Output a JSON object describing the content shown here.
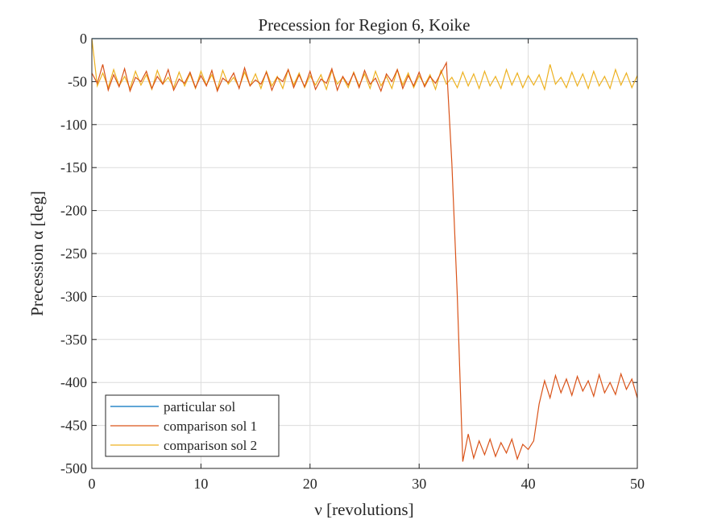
{
  "chart_data": {
    "type": "line",
    "title": "Precession for Region 6, Koike",
    "x_label": "ν [revolutions]",
    "y_label": "Precession α [deg]",
    "x": [
      0,
      0.5,
      1,
      1.5,
      2,
      2.5,
      3,
      3.5,
      4,
      4.5,
      5,
      5.5,
      6,
      6.5,
      7,
      7.5,
      8,
      8.5,
      9,
      9.5,
      10,
      10.5,
      11,
      11.5,
      12,
      12.5,
      13,
      13.5,
      14,
      14.5,
      15,
      15.5,
      16,
      16.5,
      17,
      17.5,
      18,
      18.5,
      19,
      19.5,
      20,
      20.5,
      21,
      21.5,
      22,
      22.5,
      23,
      23.5,
      24,
      24.5,
      25,
      25.5,
      26,
      26.5,
      27,
      27.5,
      28,
      28.5,
      29,
      29.5,
      30,
      30.5,
      31,
      31.5,
      32,
      32.5,
      33,
      33.5,
      34,
      34.5,
      35,
      35.5,
      36,
      36.5,
      37,
      37.5,
      38,
      38.5,
      39,
      39.5,
      40,
      40.5,
      41,
      41.5,
      42,
      42.5,
      43,
      43.5,
      44,
      44.5,
      45,
      45.5,
      46,
      46.5,
      47,
      47.5,
      48,
      48.5,
      49,
      49.5,
      50
    ],
    "series": [
      {
        "name": "particular sol",
        "color": "#0072BD",
        "values": [
          0,
          0,
          0,
          0,
          0,
          0,
          0,
          0,
          0,
          0,
          0,
          0,
          0,
          0,
          0,
          0,
          0,
          0,
          0,
          0,
          0,
          0,
          0,
          0,
          0,
          0,
          0,
          0,
          0,
          0,
          0,
          0,
          0,
          0,
          0,
          0,
          0,
          0,
          0,
          0,
          0,
          0,
          0,
          0,
          0,
          0,
          0,
          0,
          0,
          0,
          0,
          0,
          0,
          0,
          0,
          0,
          0,
          0,
          0,
          0,
          0,
          0,
          0,
          0,
          0,
          0,
          0,
          0,
          0,
          0,
          0,
          0,
          0,
          0,
          0,
          0,
          0,
          0,
          0,
          0,
          0,
          0,
          0,
          0,
          0,
          0,
          0,
          0,
          0,
          0,
          0,
          0,
          0,
          0,
          0,
          0,
          0,
          0,
          0,
          0,
          0
        ]
      },
      {
        "name": "comparison sol 1",
        "color": "#D95319",
        "values": [
          -40,
          -52,
          -30,
          -60,
          -42,
          -56,
          -35,
          -61,
          -45,
          -50,
          -38,
          -58,
          -44,
          -53,
          -36,
          -60,
          -47,
          -52,
          -39,
          -57,
          -43,
          -55,
          -37,
          -61,
          -46,
          -51,
          -40,
          -58,
          -34,
          -55,
          -48,
          -53,
          -39,
          -60,
          -45,
          -50,
          -36,
          -57,
          -42,
          -56,
          -38,
          -59,
          -47,
          -52,
          -35,
          -60,
          -44,
          -54,
          -40,
          -57,
          -37,
          -53,
          -46,
          -61,
          -41,
          -50,
          -36,
          -58,
          -43,
          -55,
          -39,
          -56,
          -44,
          -52,
          -40,
          -28,
          -145,
          -300,
          -492,
          -460,
          -488,
          -468,
          -484,
          -466,
          -486,
          -470,
          -482,
          -466,
          -489,
          -472,
          -478,
          -468,
          -425,
          -398,
          -418,
          -392,
          -412,
          -396,
          -415,
          -393,
          -410,
          -398,
          -416,
          -391,
          -412,
          -400,
          -414,
          -390,
          -408,
          -396,
          -418
        ]
      },
      {
        "name": "comparison sol 2",
        "color": "#EDB120",
        "values": [
          0,
          -55,
          -40,
          -57,
          -36,
          -55,
          -44,
          -58,
          -38,
          -54,
          -42,
          -59,
          -37,
          -53,
          -45,
          -57,
          -39,
          -55,
          -41,
          -58,
          -38,
          -54,
          -42,
          -59,
          -37,
          -53,
          -45,
          -57,
          -39,
          -55,
          -41,
          -58,
          -38,
          -55,
          -44,
          -58,
          -36,
          -54,
          -40,
          -57,
          -43,
          -54,
          -42,
          -59,
          -37,
          -53,
          -45,
          -57,
          -39,
          -55,
          -41,
          -58,
          -38,
          -55,
          -44,
          -58,
          -36,
          -54,
          -40,
          -57,
          -43,
          -54,
          -42,
          -59,
          -37,
          -53,
          -45,
          -57,
          -39,
          -55,
          -41,
          -58,
          -38,
          -55,
          -44,
          -58,
          -36,
          -54,
          -40,
          -57,
          -43,
          -54,
          -42,
          -59,
          -30,
          -53,
          -45,
          -57,
          -39,
          -55,
          -41,
          -58,
          -38,
          -55,
          -44,
          -58,
          -36,
          -54,
          -40,
          -57,
          -43
        ]
      }
    ],
    "xlim": [
      0,
      50
    ],
    "xticks": [
      0,
      10,
      20,
      30,
      40,
      50
    ],
    "ylim": [
      -500,
      0
    ],
    "yticks": [
      -500,
      -450,
      -400,
      -350,
      -300,
      -250,
      -200,
      -150,
      -100,
      -50,
      0
    ],
    "grid": true,
    "legend": "southwest"
  }
}
